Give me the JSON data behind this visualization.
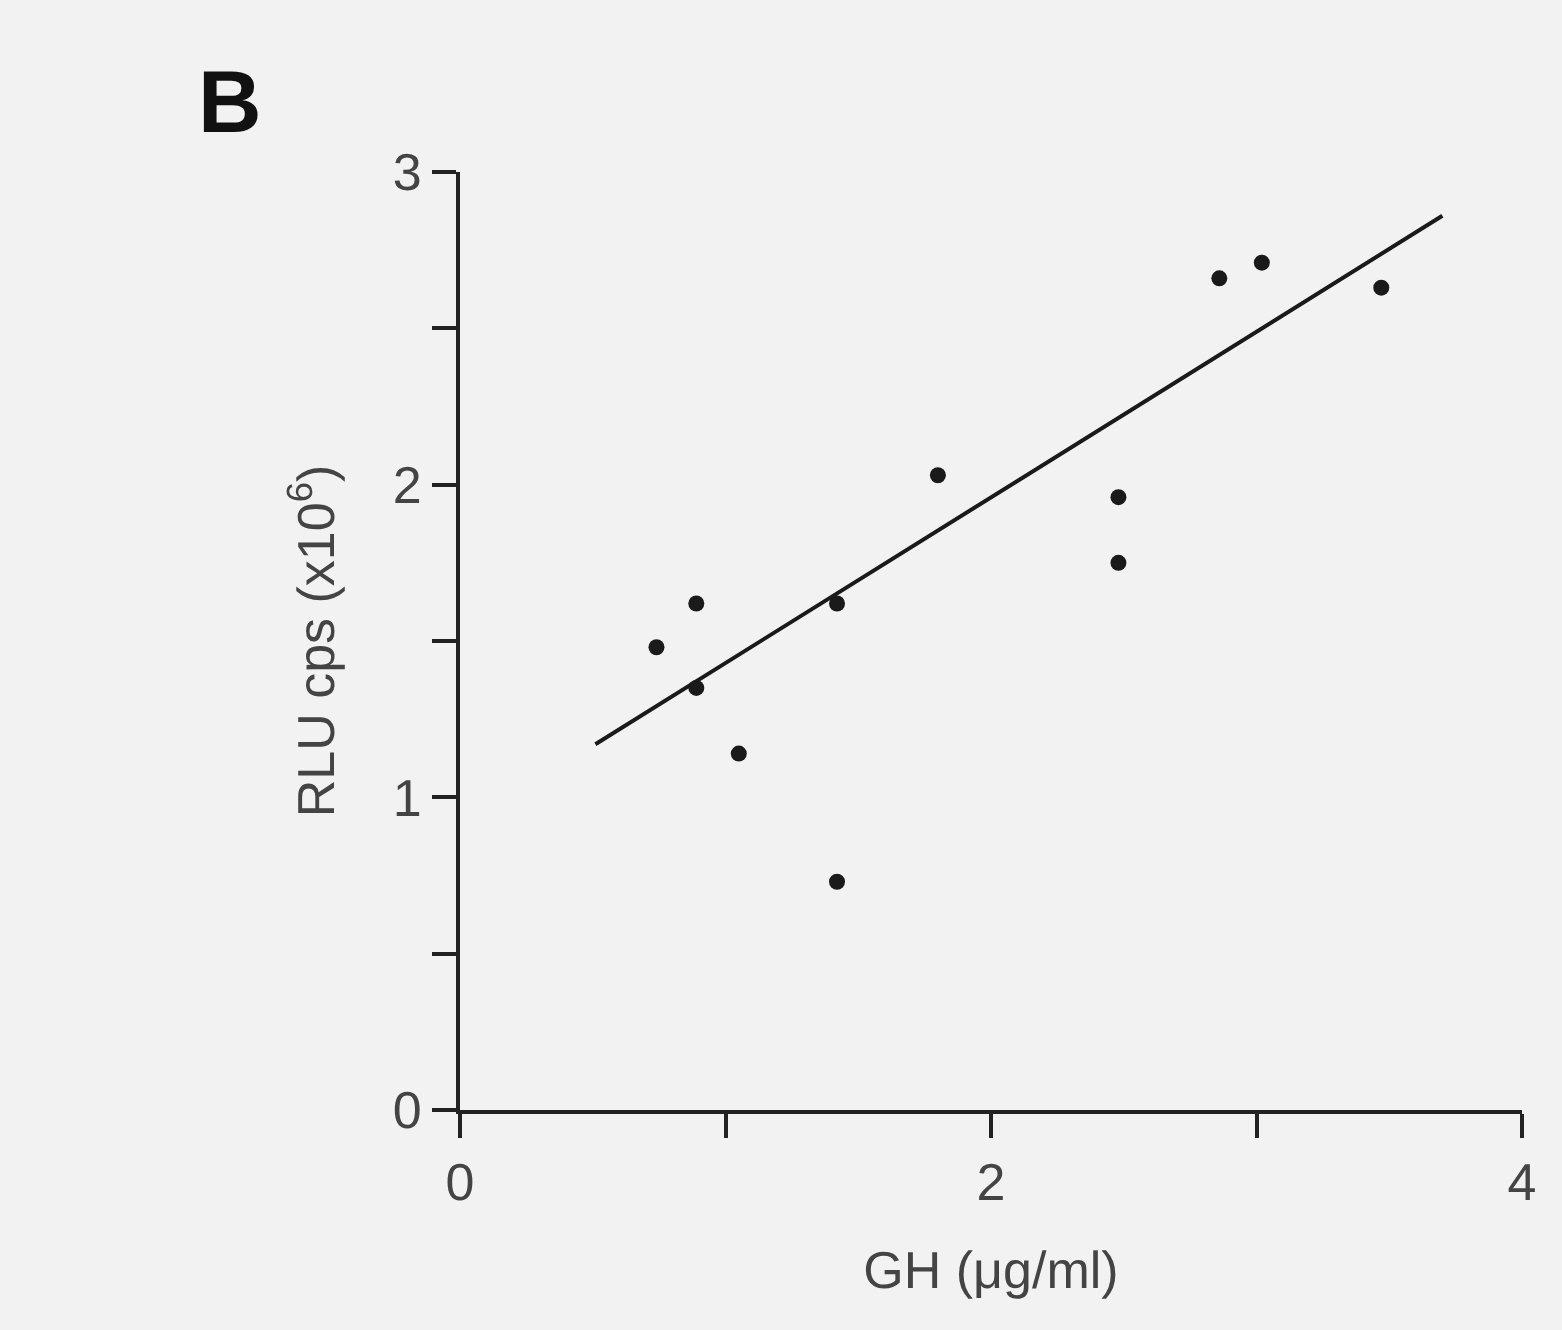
{
  "chart_data": {
    "type": "scatter",
    "xlabel": "GH (μg/ml)",
    "ylabel": "RLU cps (x10$^{6}$)",
    "annotations": [
      "B"
    ],
    "xlim": [
      0,
      4
    ],
    "xticks": [
      0,
      {
        "value": 1,
        "label": null
      },
      2,
      {
        "value": 3,
        "label": null
      },
      4
    ],
    "ylim": [
      0,
      3
    ],
    "yticks": [
      0,
      {
        "value": 0.5,
        "label": null
      },
      1,
      {
        "value": 1.5,
        "label": null
      },
      2,
      {
        "value": 2.5,
        "label": null
      },
      3
    ],
    "grid": false,
    "series": [
      {
        "type": "scatter",
        "marker": "circle",
        "color": "#1a1a1a",
        "x": [
          0.74,
          0.89,
          0.89,
          1.05,
          1.42,
          1.42,
          1.8,
          2.48,
          2.48,
          2.86,
          3.02,
          3.47
        ],
        "values": [
          1.48,
          1.62,
          1.35,
          1.14,
          0.73,
          1.62,
          2.03,
          1.96,
          1.75,
          2.66,
          2.71,
          2.63
        ]
      },
      {
        "type": "line",
        "color": "#1a1a1a",
        "line_style": "solid",
        "marker": "none",
        "x": [
          0.51,
          3.7
        ],
        "values": [
          1.17,
          2.86
        ]
      }
    ]
  }
}
